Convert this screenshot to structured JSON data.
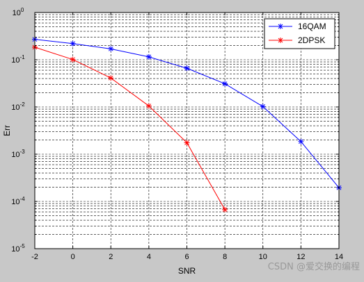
{
  "chart_data": {
    "type": "line",
    "title": "",
    "xlabel": "SNR",
    "ylabel": "Err",
    "xlim": [
      -2,
      14
    ],
    "ylim": [
      1e-05,
      1
    ],
    "yscale": "log",
    "grid": true,
    "legend_position": "top-right",
    "xticks": [
      "-2",
      "0",
      "2",
      "4",
      "6",
      "8",
      "10",
      "12",
      "14"
    ],
    "yticks": [
      {
        "base": "10",
        "exp": "0"
      },
      {
        "base": "10",
        "exp": "-1"
      },
      {
        "base": "10",
        "exp": "-2"
      },
      {
        "base": "10",
        "exp": "-3"
      },
      {
        "base": "10",
        "exp": "-4"
      },
      {
        "base": "10",
        "exp": "-5"
      }
    ],
    "series": [
      {
        "name": "16QAM",
        "color": "#0000ff",
        "marker": "asterisk",
        "x": [
          -2,
          0,
          2,
          4,
          6,
          8,
          10,
          12,
          14
        ],
        "y": [
          0.27,
          0.22,
          0.17,
          0.115,
          0.066,
          0.031,
          0.0102,
          0.00185,
          0.000195
        ]
      },
      {
        "name": "2DPSK",
        "color": "#ff0000",
        "marker": "asterisk",
        "x": [
          -2,
          0,
          2,
          4,
          6,
          8
        ],
        "y": [
          0.184,
          0.101,
          0.041,
          0.0105,
          0.00175,
          6.7e-05
        ]
      }
    ]
  },
  "watermark": "CSDN @爱交换的编程"
}
